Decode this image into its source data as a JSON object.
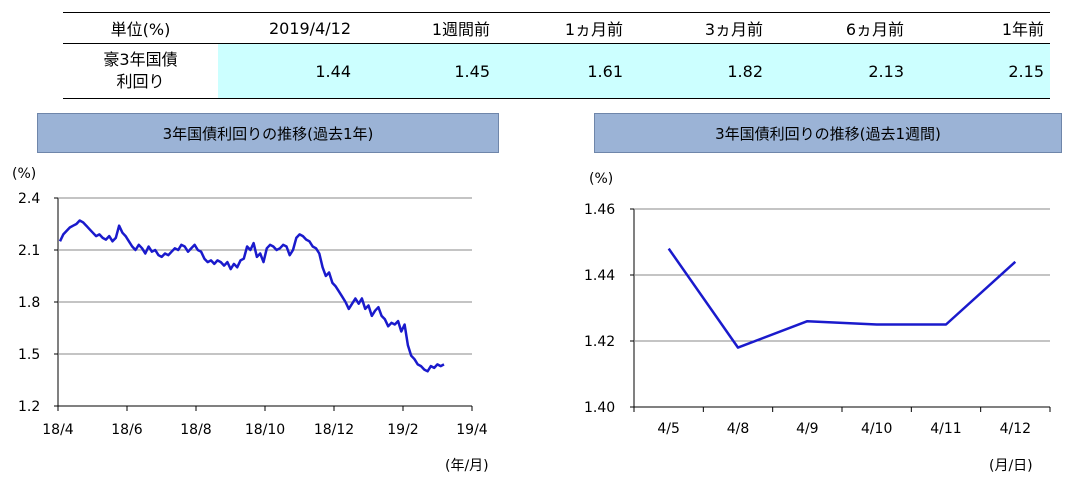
{
  "table": {
    "headers": [
      "単位(%)",
      "2019/4/12",
      "1週間前",
      "1ヵ月前",
      "3ヵ月前",
      "6ヵ月前",
      "1年前"
    ],
    "row_label_lines": [
      "豪3年国債",
      "利回り"
    ],
    "values": [
      "1.44",
      "1.45",
      "1.61",
      "1.82",
      "2.13",
      "2.15"
    ]
  },
  "chart_data": [
    {
      "type": "line",
      "title": "3年国債利回りの推移(過去1年)",
      "ylabel": "(%)",
      "xlabel": "(年/月)",
      "ylim": [
        1.2,
        2.4
      ],
      "yticks": [
        "2.4",
        "2.1",
        "1.8",
        "1.5",
        "1.2"
      ],
      "xtick_labels": [
        "18/4",
        "18/6",
        "18/8",
        "18/10",
        "18/12",
        "19/2",
        "19/4"
      ],
      "series_color": "#1a1acc",
      "series": [
        {
          "values": [
            2.15,
            2.19,
            2.21,
            2.23,
            2.24,
            2.25,
            2.27,
            2.26,
            2.24,
            2.22,
            2.2,
            2.18,
            2.19,
            2.17,
            2.16,
            2.18,
            2.15,
            2.17,
            2.24,
            2.2,
            2.18,
            2.15,
            2.12,
            2.1,
            2.13,
            2.11,
            2.08,
            2.12,
            2.09,
            2.1,
            2.07,
            2.06,
            2.08,
            2.07,
            2.09,
            2.11,
            2.1,
            2.13,
            2.12,
            2.09,
            2.11,
            2.13,
            2.1,
            2.09,
            2.05,
            2.03,
            2.04,
            2.02,
            2.04,
            2.03,
            2.01,
            2.03,
            1.99,
            2.02,
            2.0,
            2.04,
            2.05,
            2.12,
            2.1,
            2.14,
            2.06,
            2.08,
            2.03,
            2.11,
            2.13,
            2.12,
            2.1,
            2.11,
            2.13,
            2.12,
            2.07,
            2.1,
            2.17,
            2.19,
            2.18,
            2.16,
            2.15,
            2.12,
            2.11,
            2.08,
            2.0,
            1.95,
            1.97,
            1.91,
            1.89,
            1.86,
            1.83,
            1.8,
            1.76,
            1.79,
            1.82,
            1.79,
            1.82,
            1.76,
            1.78,
            1.72,
            1.75,
            1.77,
            1.72,
            1.7,
            1.66,
            1.68,
            1.67,
            1.69,
            1.63,
            1.67,
            1.55,
            1.49,
            1.47,
            1.44,
            1.43,
            1.41,
            1.4,
            1.43,
            1.42,
            1.44,
            1.43,
            1.44
          ]
        }
      ]
    },
    {
      "type": "line",
      "title": "3年国債利回りの推移(過去1週間)",
      "ylabel": "(%)",
      "xlabel": "(月/日)",
      "ylim": [
        1.4,
        1.46
      ],
      "yticks": [
        "1.46",
        "1.44",
        "1.42",
        "1.40"
      ],
      "categories": [
        "4/5",
        "4/8",
        "4/9",
        "4/10",
        "4/11",
        "4/12"
      ],
      "series_color": "#1a1acc",
      "series": [
        {
          "values": [
            1.448,
            1.418,
            1.426,
            1.425,
            1.425,
            1.444
          ]
        }
      ]
    }
  ]
}
